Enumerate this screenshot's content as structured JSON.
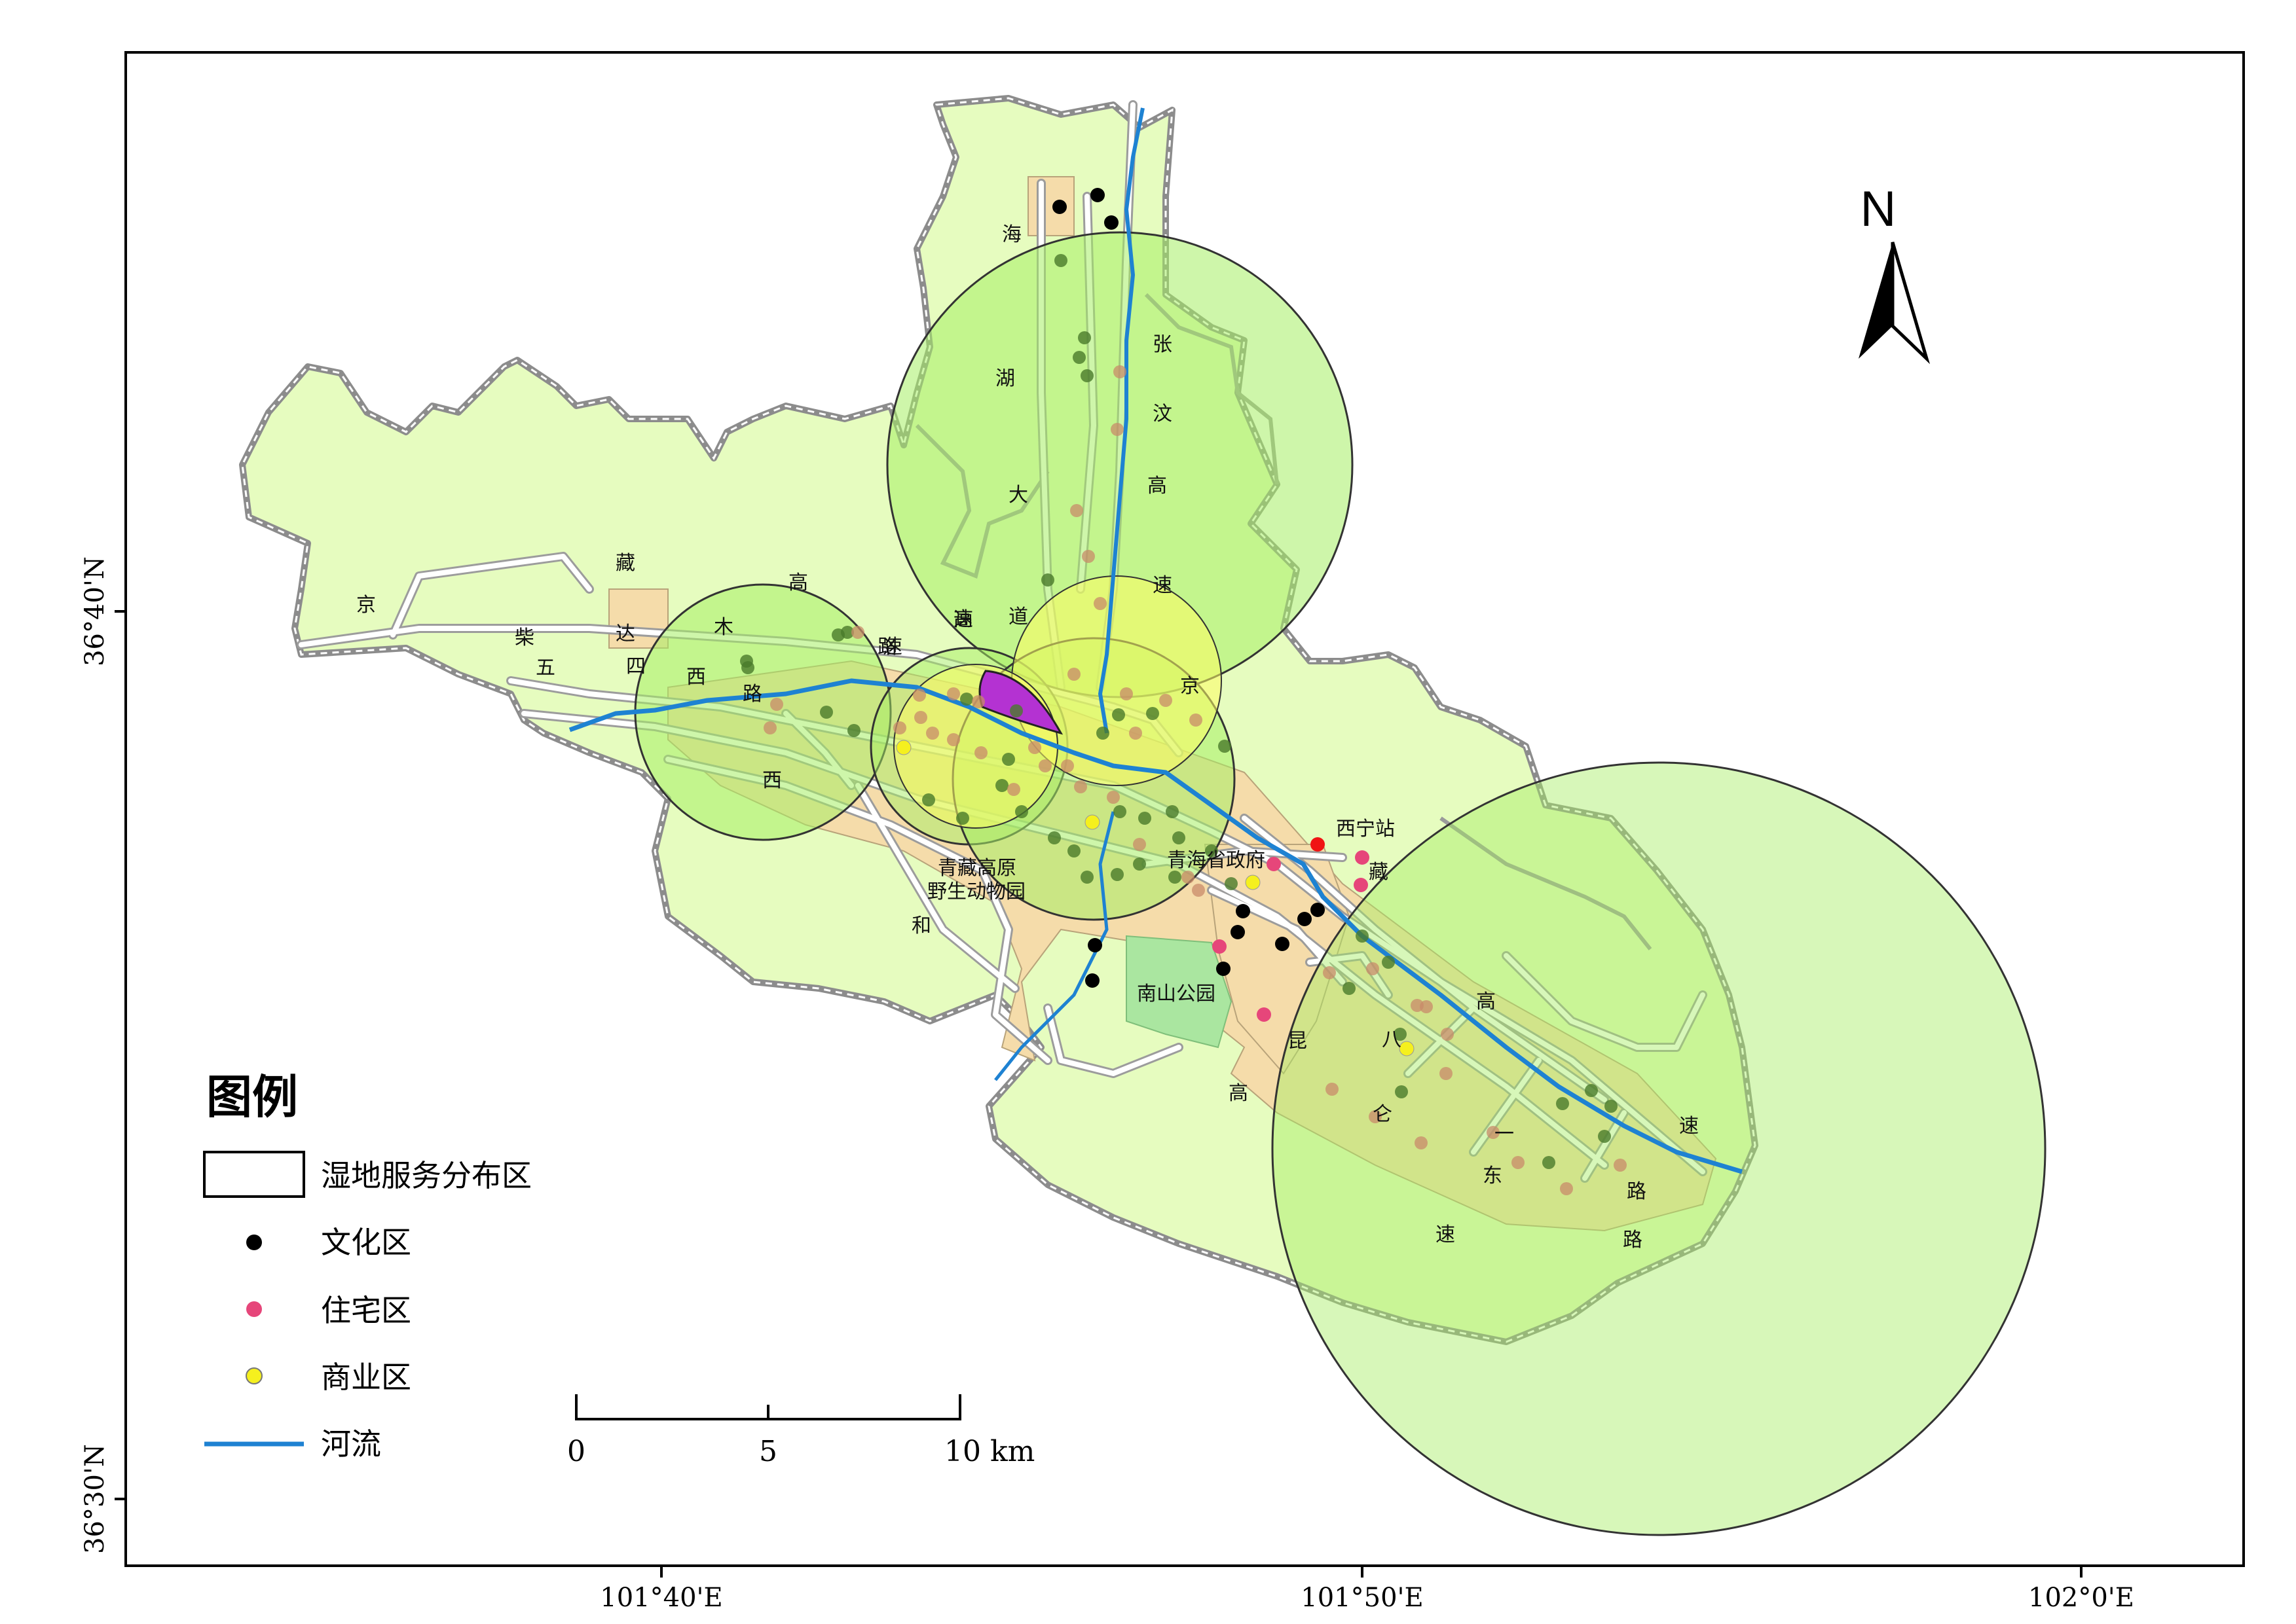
{
  "map": {
    "north_label": "N",
    "coordinates": {
      "lat_top": "36°40'N",
      "lat_bottom": "36°30'N",
      "lon_left": "101°40'E",
      "lon_mid": "101°50'E",
      "lon_right": "102°0'E"
    },
    "place_labels": {
      "xining_station": "西宁站",
      "provincial_gov": "青海省政府",
      "wildlife_park_line1": "青藏高原",
      "wildlife_park_line2": "野生动物园",
      "nanshan_park": "南山公园"
    },
    "road_chars": [
      "海",
      "湖",
      "大",
      "道",
      "张",
      "汶",
      "高",
      "速",
      "京",
      "藏",
      "高",
      "速",
      "柴",
      "达",
      "木",
      "高",
      "速",
      "路",
      "京",
      "五",
      "四",
      "西",
      "路",
      "西",
      "和",
      "藏",
      "高",
      "昆",
      "八",
      "仑",
      "一",
      "东",
      "路",
      "速",
      "路",
      "高",
      "速"
    ],
    "colors": {
      "district_fill": "#e6fcbf",
      "district_outline": "#8c8c8c",
      "urban_fill": "#f5dcaa",
      "buffer_fill": "#a6ee64",
      "yellow_buffer": "#fdfb64",
      "core_purple": "#b432d2",
      "river": "#1e82d2",
      "park_green": "#aae6a0",
      "culture_point": "#000000",
      "residential_point": "#e6467a",
      "commercial_point": "#f5f01e",
      "station_point": "#f01414"
    }
  },
  "legend": {
    "title": "图例",
    "items": [
      {
        "label": "湿地服务分布区",
        "symbol": "box"
      },
      {
        "label": "文化区",
        "symbol": "black-dot"
      },
      {
        "label": "住宅区",
        "symbol": "pink-dot"
      },
      {
        "label": "商业区",
        "symbol": "yellow-dot"
      },
      {
        "label": "河流",
        "symbol": "blue-line"
      }
    ]
  },
  "scale_bar": {
    "ticks": [
      "0",
      "5",
      "10 km"
    ]
  }
}
